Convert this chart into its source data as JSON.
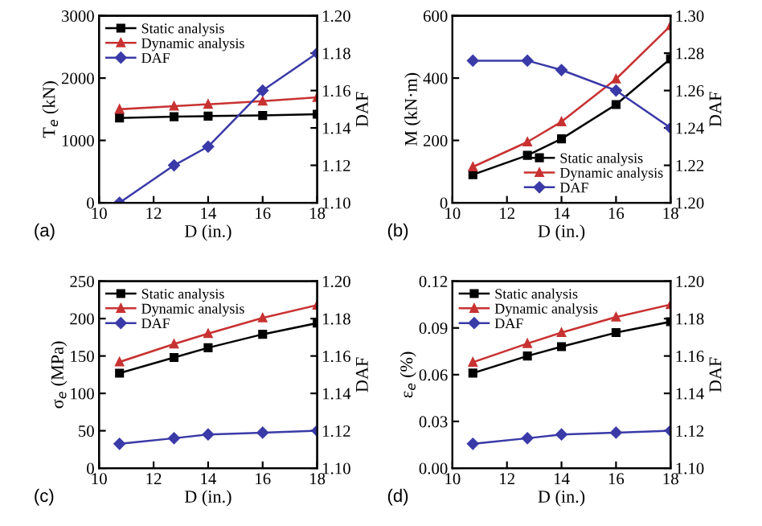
{
  "chart_data": [
    {
      "type": "line",
      "annotations": [
        "(a)"
      ],
      "xlabel": "D (in.)",
      "ylabel": "T$_{e}$ (kN)",
      "y2label": "DAF",
      "x": [
        10.75,
        12.75,
        14,
        16,
        18
      ],
      "xlim": [
        10,
        18
      ],
      "xticks": [
        10,
        12,
        14,
        16,
        18
      ],
      "ylim": [
        0,
        3000
      ],
      "yticks": [
        0,
        1000,
        2000,
        3000
      ],
      "y2lim": [
        1.1,
        1.2
      ],
      "y2ticks": [
        {
          "value": 1.1,
          "label": "1.10"
        },
        1.12,
        1.14,
        1.16,
        1.18,
        {
          "value": 1.2,
          "label": "1.20"
        }
      ],
      "legend": "top left",
      "series": [
        {
          "name": "Static analysis",
          "color": "#000000",
          "marker": "square",
          "values": [
            1360,
            1380,
            1390,
            1400,
            1420
          ]
        },
        {
          "name": "Dynamic analysis",
          "color": "#c83232",
          "marker": "triangle",
          "values": [
            1500,
            1550,
            1580,
            1630,
            1690
          ]
        },
        {
          "name": "DAF",
          "color": "#3a3aa8",
          "marker": "diamond",
          "axis": "y2",
          "values": [
            1.1,
            1.12,
            1.13,
            1.16,
            1.18
          ]
        }
      ]
    },
    {
      "type": "line",
      "annotations": [
        "(b)"
      ],
      "xlabel": "D (in.)",
      "ylabel": "M (kN·m)",
      "y2label": "DAF",
      "x": [
        10.75,
        12.75,
        14,
        16,
        18
      ],
      "xlim": [
        10,
        18
      ],
      "xticks": [
        10,
        12,
        14,
        16,
        18
      ],
      "ylim": [
        0,
        600
      ],
      "yticks": [
        0,
        200,
        400,
        600
      ],
      "y2lim": [
        1.2,
        1.3
      ],
      "y2ticks": [
        {
          "value": 1.2,
          "label": "1.20"
        },
        1.22,
        1.24,
        1.26,
        1.28,
        {
          "value": 1.3,
          "label": "1.30"
        }
      ],
      "legend": "bottom right",
      "series": [
        {
          "name": "Static analysis",
          "color": "#000000",
          "marker": "square",
          "values": [
            90,
            152,
            205,
            315,
            462
          ]
        },
        {
          "name": "Dynamic analysis",
          "color": "#c83232",
          "marker": "triangle",
          "values": [
            115,
            195,
            260,
            397,
            568
          ]
        },
        {
          "name": "DAF",
          "color": "#3a3aa8",
          "marker": "diamond",
          "axis": "y2",
          "values": [
            1.276,
            1.276,
            1.271,
            1.26,
            1.24
          ]
        }
      ]
    },
    {
      "type": "line",
      "annotations": [
        "(c)"
      ],
      "xlabel": "D (in.)",
      "ylabel": "σ$_{e}$ (MPa)",
      "y2label": "DAF",
      "x": [
        10.75,
        12.75,
        14,
        16,
        18
      ],
      "xlim": [
        10,
        18
      ],
      "xticks": [
        10,
        12,
        14,
        16,
        18
      ],
      "ylim": [
        0,
        250
      ],
      "yticks": [
        0,
        50,
        100,
        150,
        200,
        250
      ],
      "y2lim": [
        1.1,
        1.2
      ],
      "y2ticks": [
        {
          "value": 1.1,
          "label": "1.10"
        },
        1.12,
        1.14,
        1.16,
        1.18,
        {
          "value": 1.2,
          "label": "1.20"
        }
      ],
      "legend": "top left",
      "series": [
        {
          "name": "Static analysis",
          "color": "#000000",
          "marker": "square",
          "values": [
            127,
            148,
            161,
            179,
            194
          ]
        },
        {
          "name": "Dynamic analysis",
          "color": "#c83232",
          "marker": "triangle",
          "values": [
            142,
            166,
            180,
            201,
            218
          ]
        },
        {
          "name": "DAF",
          "color": "#3a3aa8",
          "marker": "diamond",
          "axis": "y2",
          "values": [
            1.113,
            1.116,
            1.118,
            1.119,
            1.12
          ]
        }
      ]
    },
    {
      "type": "line",
      "annotations": [
        "(d)"
      ],
      "xlabel": "D (in.)",
      "ylabel": "ε$_{e}$ (%)",
      "y2label": "DAF",
      "x": [
        10.75,
        12.75,
        14,
        16,
        18
      ],
      "xlim": [
        10,
        18
      ],
      "xticks": [
        10,
        12,
        14,
        16,
        18
      ],
      "ylim": [
        0,
        0.12
      ],
      "yticks": [
        {
          "value": 0,
          "label": "0.00"
        },
        0.03,
        0.06,
        0.09,
        0.12
      ],
      "y2lim": [
        1.1,
        1.2
      ],
      "y2ticks": [
        {
          "value": 1.1,
          "label": "1.10"
        },
        1.12,
        1.14,
        1.16,
        1.18,
        {
          "value": 1.2,
          "label": "1.20"
        }
      ],
      "legend": "top left",
      "series": [
        {
          "name": "Static analysis",
          "color": "#000000",
          "marker": "square",
          "values": [
            0.061,
            0.072,
            0.078,
            0.087,
            0.094
          ]
        },
        {
          "name": "Dynamic analysis",
          "color": "#c83232",
          "marker": "triangle",
          "values": [
            0.068,
            0.08,
            0.087,
            0.097,
            0.105
          ]
        },
        {
          "name": "DAF",
          "color": "#3a3aa8",
          "marker": "diamond",
          "axis": "y2",
          "values": [
            1.113,
            1.116,
            1.118,
            1.119,
            1.12
          ]
        }
      ]
    }
  ]
}
